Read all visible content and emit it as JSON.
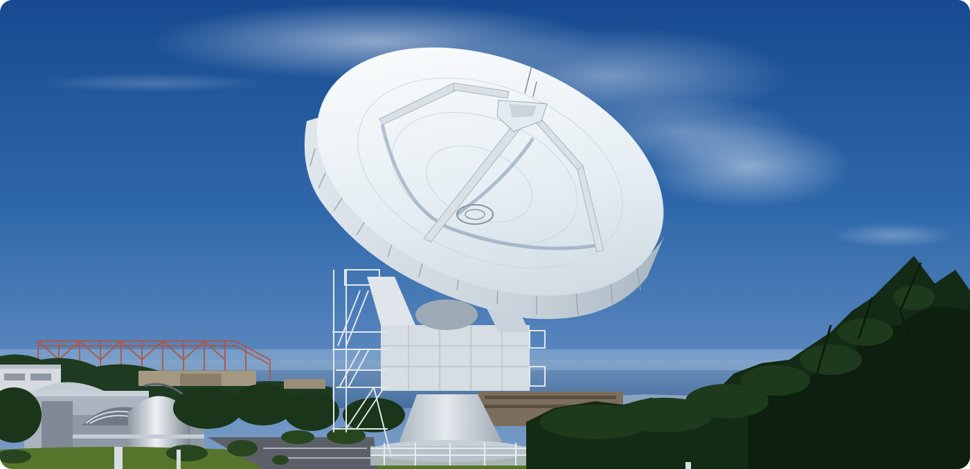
{
  "image": {
    "subject": "radio-telescope-dish",
    "colors": {
      "sky_top": "#1c4d93",
      "sky_mid": "#3a6fae",
      "sky_horizon": "#89abd0",
      "dish_light": "#eef3f6",
      "dish_shadow": "#9fb0bf",
      "structure": "#cfd7de",
      "tree_dark": "#102515",
      "tree_mid": "#1f3a1f",
      "grass": "#56752a",
      "frame_red": "#b3553e"
    }
  }
}
